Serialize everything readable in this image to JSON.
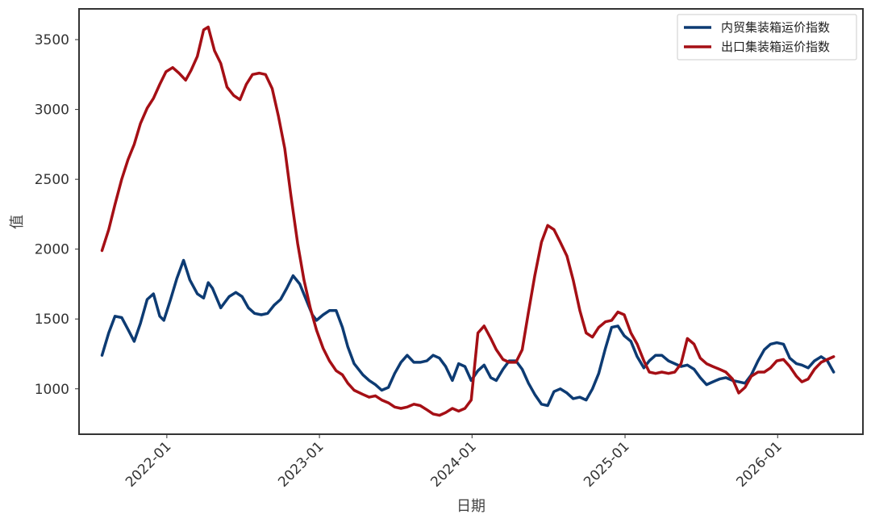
{
  "chart_data": {
    "type": "line",
    "title": "",
    "xlabel": "日期",
    "ylabel": "值",
    "x_ticks": [
      "2022-01",
      "2023-01",
      "2024-01",
      "2025-01",
      "2026-01"
    ],
    "y_ticks": [
      1000,
      1500,
      2000,
      2500,
      3000,
      3500
    ],
    "xlim": [
      "2021-06-05",
      "2026-07-24"
    ],
    "ylim": [
      675,
      3720
    ],
    "grid": false,
    "legend_position": "top-right",
    "series": [
      {
        "name": "内贸集装箱运价指数",
        "color": "#0d3b73",
        "points": [
          [
            "2021-07-30",
            1240
          ],
          [
            "2021-08-15",
            1400
          ],
          [
            "2021-08-30",
            1520
          ],
          [
            "2021-09-15",
            1510
          ],
          [
            "2021-10-01",
            1420
          ],
          [
            "2021-10-15",
            1340
          ],
          [
            "2021-10-30",
            1470
          ],
          [
            "2021-11-15",
            1640
          ],
          [
            "2021-11-30",
            1680
          ],
          [
            "2021-12-15",
            1520
          ],
          [
            "2021-12-25",
            1490
          ],
          [
            "2022-01-10",
            1640
          ],
          [
            "2022-01-25",
            1790
          ],
          [
            "2022-02-10",
            1920
          ],
          [
            "2022-02-25",
            1780
          ],
          [
            "2022-03-15",
            1680
          ],
          [
            "2022-03-30",
            1650
          ],
          [
            "2022-04-10",
            1760
          ],
          [
            "2022-04-20",
            1720
          ],
          [
            "2022-05-10",
            1580
          ],
          [
            "2022-05-30",
            1660
          ],
          [
            "2022-06-15",
            1690
          ],
          [
            "2022-06-30",
            1660
          ],
          [
            "2022-07-15",
            1580
          ],
          [
            "2022-07-30",
            1540
          ],
          [
            "2022-08-15",
            1530
          ],
          [
            "2022-08-30",
            1540
          ],
          [
            "2022-09-15",
            1600
          ],
          [
            "2022-09-30",
            1640
          ],
          [
            "2022-10-15",
            1720
          ],
          [
            "2022-10-30",
            1810
          ],
          [
            "2022-11-15",
            1750
          ],
          [
            "2022-11-30",
            1640
          ],
          [
            "2022-12-15",
            1530
          ],
          [
            "2022-12-25",
            1490
          ],
          [
            "2023-01-10",
            1530
          ],
          [
            "2023-01-25",
            1560
          ],
          [
            "2023-02-10",
            1560
          ],
          [
            "2023-02-25",
            1440
          ],
          [
            "2023-03-10",
            1300
          ],
          [
            "2023-03-25",
            1180
          ],
          [
            "2023-04-15",
            1100
          ],
          [
            "2023-04-30",
            1060
          ],
          [
            "2023-05-15",
            1030
          ],
          [
            "2023-05-30",
            990
          ],
          [
            "2023-06-15",
            1010
          ],
          [
            "2023-06-30",
            1110
          ],
          [
            "2023-07-15",
            1190
          ],
          [
            "2023-07-30",
            1240
          ],
          [
            "2023-08-15",
            1190
          ],
          [
            "2023-08-30",
            1190
          ],
          [
            "2023-09-15",
            1200
          ],
          [
            "2023-09-30",
            1240
          ],
          [
            "2023-10-15",
            1220
          ],
          [
            "2023-10-30",
            1160
          ],
          [
            "2023-11-15",
            1060
          ],
          [
            "2023-11-30",
            1180
          ],
          [
            "2023-12-15",
            1160
          ],
          [
            "2023-12-30",
            1060
          ],
          [
            "2024-01-15",
            1130
          ],
          [
            "2024-01-30",
            1170
          ],
          [
            "2024-02-15",
            1080
          ],
          [
            "2024-02-28",
            1060
          ],
          [
            "2024-03-15",
            1140
          ],
          [
            "2024-03-30",
            1200
          ],
          [
            "2024-04-15",
            1200
          ],
          [
            "2024-04-30",
            1140
          ],
          [
            "2024-05-15",
            1040
          ],
          [
            "2024-05-30",
            960
          ],
          [
            "2024-06-15",
            890
          ],
          [
            "2024-06-30",
            880
          ],
          [
            "2024-07-15",
            980
          ],
          [
            "2024-07-30",
            1000
          ],
          [
            "2024-08-15",
            970
          ],
          [
            "2024-08-30",
            930
          ],
          [
            "2024-09-15",
            940
          ],
          [
            "2024-09-30",
            920
          ],
          [
            "2024-10-15",
            1000
          ],
          [
            "2024-10-30",
            1110
          ],
          [
            "2024-11-15",
            1290
          ],
          [
            "2024-11-30",
            1440
          ],
          [
            "2024-12-15",
            1450
          ],
          [
            "2024-12-30",
            1380
          ],
          [
            "2025-01-15",
            1340
          ],
          [
            "2025-01-30",
            1230
          ],
          [
            "2025-02-15",
            1150
          ],
          [
            "2025-02-28",
            1200
          ],
          [
            "2025-03-15",
            1240
          ],
          [
            "2025-03-30",
            1240
          ],
          [
            "2025-04-15",
            1200
          ],
          [
            "2025-04-30",
            1180
          ],
          [
            "2025-05-15",
            1160
          ],
          [
            "2025-05-30",
            1170
          ],
          [
            "2025-06-15",
            1140
          ],
          [
            "2025-06-30",
            1080
          ],
          [
            "2025-07-15",
            1030
          ],
          [
            "2025-07-30",
            1050
          ],
          [
            "2025-08-15",
            1070
          ],
          [
            "2025-08-30",
            1080
          ],
          [
            "2025-09-15",
            1060
          ],
          [
            "2025-09-30",
            1050
          ],
          [
            "2025-10-15",
            1040
          ],
          [
            "2025-10-30",
            1100
          ],
          [
            "2025-11-15",
            1200
          ],
          [
            "2025-11-30",
            1280
          ],
          [
            "2025-12-15",
            1320
          ],
          [
            "2025-12-30",
            1330
          ],
          [
            "2026-01-15",
            1320
          ],
          [
            "2026-01-30",
            1220
          ],
          [
            "2026-02-15",
            1180
          ],
          [
            "2026-02-28",
            1170
          ],
          [
            "2026-03-15",
            1150
          ],
          [
            "2026-03-30",
            1200
          ],
          [
            "2026-04-15",
            1230
          ],
          [
            "2026-04-30",
            1200
          ],
          [
            "2026-05-15",
            1120
          ]
        ]
      },
      {
        "name": "出口集装箱运价指数",
        "color": "#a50f15",
        "points": [
          [
            "2021-07-30",
            1990
          ],
          [
            "2021-08-15",
            2140
          ],
          [
            "2021-08-30",
            2320
          ],
          [
            "2021-09-15",
            2500
          ],
          [
            "2021-09-30",
            2640
          ],
          [
            "2021-10-15",
            2750
          ],
          [
            "2021-10-30",
            2900
          ],
          [
            "2021-11-15",
            3010
          ],
          [
            "2021-11-30",
            3080
          ],
          [
            "2021-12-15",
            3180
          ],
          [
            "2021-12-30",
            3270
          ],
          [
            "2022-01-15",
            3300
          ],
          [
            "2022-01-30",
            3260
          ],
          [
            "2022-02-15",
            3210
          ],
          [
            "2022-02-28",
            3280
          ],
          [
            "2022-03-15",
            3380
          ],
          [
            "2022-03-30",
            3570
          ],
          [
            "2022-04-10",
            3590
          ],
          [
            "2022-04-25",
            3420
          ],
          [
            "2022-05-10",
            3330
          ],
          [
            "2022-05-25",
            3160
          ],
          [
            "2022-06-10",
            3100
          ],
          [
            "2022-06-25",
            3070
          ],
          [
            "2022-07-10",
            3180
          ],
          [
            "2022-07-25",
            3250
          ],
          [
            "2022-08-10",
            3260
          ],
          [
            "2022-08-25",
            3250
          ],
          [
            "2022-09-10",
            3150
          ],
          [
            "2022-09-25",
            2950
          ],
          [
            "2022-10-10",
            2720
          ],
          [
            "2022-10-25",
            2380
          ],
          [
            "2022-11-10",
            2040
          ],
          [
            "2022-11-25",
            1780
          ],
          [
            "2022-12-10",
            1580
          ],
          [
            "2022-12-25",
            1420
          ],
          [
            "2023-01-10",
            1290
          ],
          [
            "2023-01-25",
            1200
          ],
          [
            "2023-02-10",
            1130
          ],
          [
            "2023-02-25",
            1100
          ],
          [
            "2023-03-10",
            1040
          ],
          [
            "2023-03-25",
            990
          ],
          [
            "2023-04-15",
            960
          ],
          [
            "2023-04-30",
            940
          ],
          [
            "2023-05-15",
            950
          ],
          [
            "2023-05-30",
            920
          ],
          [
            "2023-06-15",
            900
          ],
          [
            "2023-06-30",
            870
          ],
          [
            "2023-07-15",
            860
          ],
          [
            "2023-07-30",
            870
          ],
          [
            "2023-08-15",
            890
          ],
          [
            "2023-08-30",
            880
          ],
          [
            "2023-09-15",
            850
          ],
          [
            "2023-09-30",
            820
          ],
          [
            "2023-10-15",
            810
          ],
          [
            "2023-10-30",
            830
          ],
          [
            "2023-11-15",
            860
          ],
          [
            "2023-11-30",
            840
          ],
          [
            "2023-12-15",
            860
          ],
          [
            "2023-12-30",
            920
          ],
          [
            "2024-01-15",
            1400
          ],
          [
            "2024-01-30",
            1450
          ],
          [
            "2024-02-15",
            1360
          ],
          [
            "2024-02-28",
            1280
          ],
          [
            "2024-03-15",
            1210
          ],
          [
            "2024-03-30",
            1190
          ],
          [
            "2024-04-15",
            1190
          ],
          [
            "2024-04-30",
            1280
          ],
          [
            "2024-05-15",
            1550
          ],
          [
            "2024-05-30",
            1810
          ],
          [
            "2024-06-15",
            2050
          ],
          [
            "2024-06-30",
            2170
          ],
          [
            "2024-07-15",
            2140
          ],
          [
            "2024-07-30",
            2050
          ],
          [
            "2024-08-15",
            1950
          ],
          [
            "2024-08-30",
            1780
          ],
          [
            "2024-09-15",
            1560
          ],
          [
            "2024-09-30",
            1400
          ],
          [
            "2024-10-15",
            1370
          ],
          [
            "2024-10-30",
            1440
          ],
          [
            "2024-11-15",
            1480
          ],
          [
            "2024-11-30",
            1490
          ],
          [
            "2024-12-15",
            1550
          ],
          [
            "2024-12-30",
            1530
          ],
          [
            "2025-01-15",
            1400
          ],
          [
            "2025-01-30",
            1320
          ],
          [
            "2025-02-15",
            1200
          ],
          [
            "2025-02-28",
            1120
          ],
          [
            "2025-03-15",
            1110
          ],
          [
            "2025-03-30",
            1120
          ],
          [
            "2025-04-15",
            1110
          ],
          [
            "2025-04-30",
            1120
          ],
          [
            "2025-05-15",
            1180
          ],
          [
            "2025-05-30",
            1360
          ],
          [
            "2025-06-15",
            1320
          ],
          [
            "2025-06-30",
            1220
          ],
          [
            "2025-07-15",
            1180
          ],
          [
            "2025-07-30",
            1160
          ],
          [
            "2025-08-15",
            1140
          ],
          [
            "2025-08-30",
            1120
          ],
          [
            "2025-09-15",
            1070
          ],
          [
            "2025-09-30",
            970
          ],
          [
            "2025-10-15",
            1010
          ],
          [
            "2025-10-30",
            1090
          ],
          [
            "2025-11-15",
            1120
          ],
          [
            "2025-11-30",
            1120
          ],
          [
            "2025-12-15",
            1150
          ],
          [
            "2025-12-30",
            1200
          ],
          [
            "2026-01-15",
            1210
          ],
          [
            "2026-01-30",
            1160
          ],
          [
            "2026-02-15",
            1090
          ],
          [
            "2026-02-28",
            1050
          ],
          [
            "2026-03-15",
            1070
          ],
          [
            "2026-03-30",
            1140
          ],
          [
            "2026-04-15",
            1190
          ],
          [
            "2026-04-30",
            1210
          ],
          [
            "2026-05-15",
            1230
          ]
        ]
      }
    ]
  }
}
